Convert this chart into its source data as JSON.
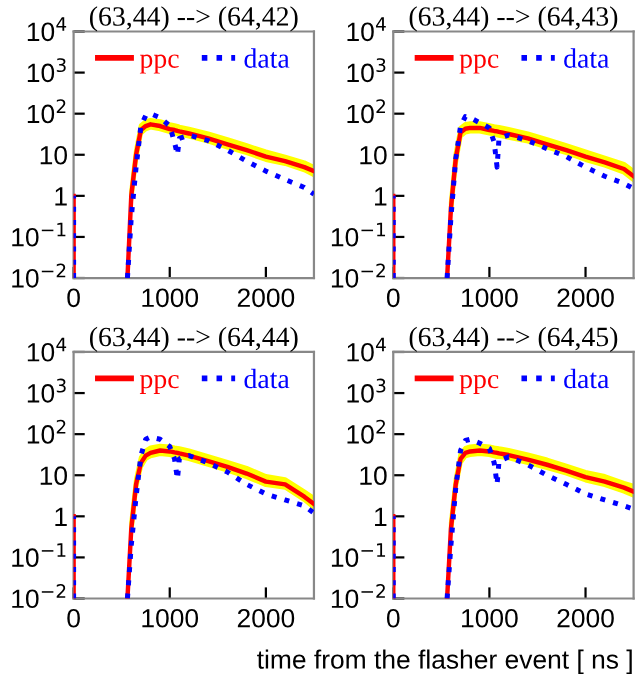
{
  "chart_data": [
    {
      "type": "line",
      "title": "(63,44) --> (64,42)",
      "xlim": [
        0,
        2500
      ],
      "xticks": [
        0,
        1000,
        2000
      ],
      "ylim": [
        0.01,
        10000
      ],
      "log": "y",
      "legend": "top",
      "yticks": [
        {
          "value": 0.01,
          "label": "10$^{−2}$"
        },
        {
          "value": 0.1,
          "label": "10$^{−1}$"
        },
        1,
        10,
        {
          "value": 100,
          "label": "10$^{2}$"
        },
        {
          "value": 1000,
          "label": "10$^{3}$"
        },
        {
          "value": 10000,
          "label": "10$^{4}$"
        }
      ],
      "x": [
        0,
        0,
        300,
        560,
        600,
        650,
        700,
        750,
        800,
        900,
        1000,
        1050,
        1080,
        1100,
        1200,
        1400,
        1600,
        1800,
        2000,
        2200,
        2400,
        2500
      ],
      "series": [
        {
          "name": "ppc",
          "color": "#ff0000",
          "line_style": "solid",
          "values": [
            0.01,
            1,
            null,
            0.01,
            1,
            10,
            40,
            50,
            55,
            50,
            42,
            40,
            38,
            37,
            33,
            25,
            18,
            13,
            9,
            7,
            5,
            4
          ],
          "lower": [
            null,
            null,
            null,
            null,
            0.8,
            8,
            33,
            42,
            46,
            42,
            36,
            34,
            32,
            31,
            28,
            21,
            15,
            11,
            7.5,
            6,
            4.2,
            3.2
          ],
          "upper": [
            null,
            null,
            null,
            null,
            1.3,
            13,
            52,
            65,
            70,
            65,
            55,
            52,
            50,
            48,
            43,
            33,
            24,
            17,
            12,
            9,
            6.5,
            5
          ]
        },
        {
          "name": "data",
          "color": "#0000ff",
          "line_style": "dotted",
          "values": [
            0.01,
            1,
            null,
            0.01,
            0.3,
            5,
            50,
            90,
            100,
            80,
            50,
            20,
            10,
            25,
            30,
            22,
            13,
            7,
            4,
            2.5,
            1.6,
            1.1
          ]
        }
      ]
    },
    {
      "type": "line",
      "title": "(63,44) --> (64,43)",
      "xlim": [
        0,
        2500
      ],
      "xticks": [
        0,
        1000,
        2000
      ],
      "ylim": [
        0.01,
        10000
      ],
      "log": "y",
      "legend": "top",
      "yticks": [
        {
          "value": 0.01,
          "label": "10$^{−2}$"
        },
        {
          "value": 0.1,
          "label": "10$^{−1}$"
        },
        1,
        10,
        {
          "value": 100,
          "label": "10$^{2}$"
        },
        {
          "value": 1000,
          "label": "10$^{3}$"
        },
        {
          "value": 10000,
          "label": "10$^{4}$"
        }
      ],
      "x": [
        0,
        0,
        300,
        560,
        600,
        650,
        700,
        750,
        800,
        900,
        1000,
        1050,
        1080,
        1100,
        1200,
        1400,
        1600,
        1800,
        2000,
        2200,
        2400,
        2500
      ],
      "series": [
        {
          "name": "ppc",
          "color": "#ff0000",
          "line_style": "solid",
          "values": [
            0.01,
            1,
            null,
            0.01,
            0.5,
            8,
            35,
            43,
            45,
            45,
            40,
            38,
            37,
            36,
            32,
            25,
            18,
            13,
            9,
            6.5,
            4.5,
            3
          ],
          "lower": [
            null,
            null,
            null,
            null,
            0.4,
            6,
            28,
            35,
            37,
            37,
            33,
            31,
            30,
            29,
            26,
            21,
            15,
            11,
            7.5,
            5.5,
            3.7,
            2.4
          ],
          "upper": [
            null,
            null,
            null,
            null,
            0.7,
            11,
            45,
            56,
            58,
            58,
            52,
            49,
            48,
            47,
            42,
            33,
            24,
            17,
            12,
            8.5,
            6,
            4
          ]
        },
        {
          "name": "data",
          "color": "#0000ff",
          "line_style": "dotted",
          "values": [
            0.01,
            1,
            null,
            0.01,
            0.3,
            8,
            50,
            85,
            80,
            60,
            45,
            20,
            5,
            25,
            30,
            22,
            14,
            9,
            5,
            3,
            2,
            1.5
          ]
        }
      ]
    },
    {
      "type": "line",
      "title": "(63,44) --> (64,44)",
      "xlim": [
        0,
        2500
      ],
      "xticks": [
        0,
        1000,
        2000
      ],
      "ylim": [
        0.01,
        10000
      ],
      "log": "y",
      "legend": "top",
      "yticks": [
        {
          "value": 0.01,
          "label": "10$^{−2}$"
        },
        {
          "value": 0.1,
          "label": "10$^{−1}$"
        },
        1,
        10,
        {
          "value": 100,
          "label": "10$^{2}$"
        },
        {
          "value": 1000,
          "label": "10$^{3}$"
        },
        {
          "value": 10000,
          "label": "10$^{4}$"
        }
      ],
      "x": [
        0,
        0,
        300,
        560,
        600,
        650,
        700,
        750,
        800,
        900,
        1000,
        1050,
        1080,
        1100,
        1200,
        1400,
        1600,
        1800,
        2000,
        2200,
        2400,
        2500
      ],
      "series": [
        {
          "name": "ppc",
          "color": "#ff0000",
          "line_style": "solid",
          "values": [
            0.01,
            1,
            null,
            0.01,
            0.5,
            6,
            20,
            30,
            35,
            40,
            38,
            36,
            35,
            34,
            30,
            22,
            16,
            11,
            7,
            6,
            3,
            2
          ],
          "lower": [
            null,
            null,
            null,
            null,
            0.4,
            5,
            16,
            25,
            29,
            33,
            31,
            29,
            28,
            28,
            25,
            18,
            13,
            9,
            5.8,
            5,
            2.5,
            1.6
          ],
          "upper": [
            null,
            null,
            null,
            null,
            0.7,
            8,
            27,
            40,
            47,
            52,
            50,
            47,
            46,
            45,
            40,
            29,
            21,
            15,
            9.5,
            8,
            4,
            2.8
          ]
        },
        {
          "name": "data",
          "color": "#0000ff",
          "line_style": "dotted",
          "values": [
            0.01,
            1,
            null,
            0.01,
            0.2,
            3,
            30,
            75,
            85,
            75,
            50,
            25,
            8,
            25,
            30,
            20,
            12,
            6,
            3.5,
            2.5,
            1.8,
            1.2
          ]
        }
      ]
    },
    {
      "type": "line",
      "title": "(63,44) --> (64,45)",
      "xlabel": "time from the flasher event [ ns ]",
      "xlim": [
        0,
        2500
      ],
      "xticks": [
        0,
        1000,
        2000
      ],
      "ylim": [
        0.01,
        10000
      ],
      "log": "y",
      "legend": "top",
      "yticks": [
        {
          "value": 0.01,
          "label": "10$^{−2}$"
        },
        {
          "value": 0.1,
          "label": "10$^{−1}$"
        },
        1,
        10,
        {
          "value": 100,
          "label": "10$^{2}$"
        },
        {
          "value": 1000,
          "label": "10$^{3}$"
        },
        {
          "value": 10000,
          "label": "10$^{4}$"
        }
      ],
      "x": [
        0,
        0,
        300,
        560,
        600,
        650,
        700,
        750,
        800,
        900,
        1000,
        1050,
        1080,
        1100,
        1200,
        1400,
        1600,
        1800,
        2000,
        2200,
        2400,
        2500
      ],
      "series": [
        {
          "name": "ppc",
          "color": "#ff0000",
          "line_style": "solid",
          "values": [
            0.01,
            1,
            null,
            0.01,
            0.5,
            6,
            25,
            35,
            38,
            40,
            38,
            36,
            35,
            34,
            31,
            24,
            18,
            13,
            9,
            7,
            5,
            4
          ],
          "lower": [
            null,
            null,
            null,
            null,
            0.4,
            5,
            20,
            29,
            31,
            33,
            31,
            29,
            28,
            28,
            26,
            20,
            15,
            11,
            7.5,
            5.8,
            4,
            3.2
          ],
          "upper": [
            null,
            null,
            null,
            null,
            0.7,
            8,
            33,
            46,
            50,
            53,
            50,
            47,
            46,
            45,
            41,
            32,
            24,
            17,
            12,
            9.5,
            6.5,
            5.5
          ]
        },
        {
          "name": "data",
          "color": "#0000ff",
          "line_style": "dotted",
          "values": [
            0.01,
            1,
            null,
            0.01,
            0.2,
            5,
            40,
            70,
            75,
            60,
            45,
            20,
            6,
            22,
            28,
            18,
            10,
            6,
            3.5,
            2.5,
            1.8,
            1.5
          ]
        }
      ]
    }
  ]
}
